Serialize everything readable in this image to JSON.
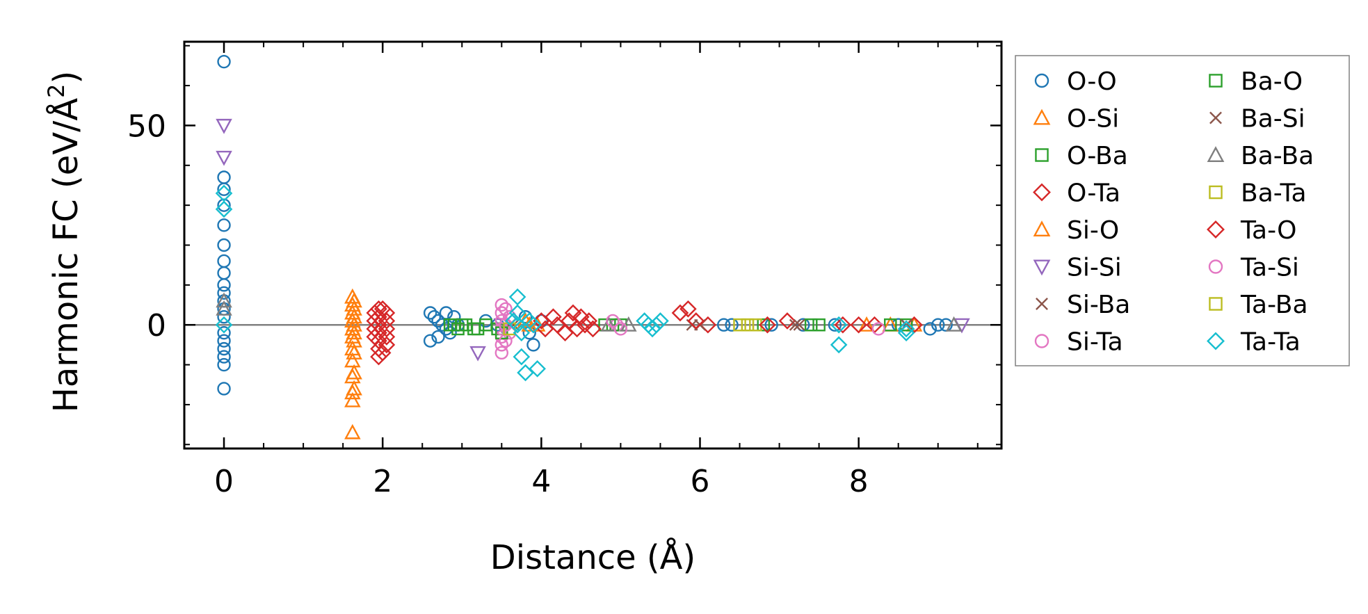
{
  "chart_data": {
    "type": "scatter",
    "xlabel": "Distance (Å)",
    "ylabel_main": "Harmonic FC (eV/Å",
    "ylabel_sup": "2",
    "ylabel_close": ")",
    "xlim": [
      -0.5,
      9.8
    ],
    "ylim": [
      -31,
      71
    ],
    "xticks": [
      0,
      2,
      4,
      6,
      8
    ],
    "xtick_labels": [
      "0",
      "2",
      "4",
      "6",
      "8"
    ],
    "yticks": [
      0,
      50
    ],
    "ytick_labels": [
      "0",
      "50"
    ],
    "grid": false,
    "legend_placement": "outside-right",
    "zero_line": true,
    "series": [
      {
        "name": "O-O",
        "marker": "circle",
        "color": "#1f77b4",
        "points": [
          [
            0,
            66
          ],
          [
            0,
            37
          ],
          [
            0,
            34
          ],
          [
            0,
            30
          ],
          [
            0,
            25
          ],
          [
            0,
            20
          ],
          [
            0,
            16
          ],
          [
            0,
            13
          ],
          [
            0,
            10
          ],
          [
            0,
            8
          ],
          [
            0,
            6
          ],
          [
            0,
            4
          ],
          [
            0,
            2
          ],
          [
            0,
            -2
          ],
          [
            0,
            -4
          ],
          [
            0,
            -6
          ],
          [
            0,
            -8
          ],
          [
            0,
            -10
          ],
          [
            0,
            -16
          ],
          [
            2.6,
            3
          ],
          [
            2.65,
            2
          ],
          [
            2.7,
            1
          ],
          [
            2.75,
            0
          ],
          [
            2.8,
            -1
          ],
          [
            2.85,
            -2
          ],
          [
            2.6,
            -4
          ],
          [
            2.7,
            -3
          ],
          [
            2.8,
            3
          ],
          [
            2.9,
            2
          ],
          [
            2.95,
            0
          ],
          [
            3.3,
            1
          ],
          [
            3.45,
            0
          ],
          [
            3.8,
            2
          ],
          [
            3.85,
            -2
          ],
          [
            3.9,
            -5
          ],
          [
            4.0,
            1
          ],
          [
            6.3,
            0
          ],
          [
            6.4,
            0
          ],
          [
            6.9,
            0
          ],
          [
            7.3,
            0
          ],
          [
            7.7,
            0
          ],
          [
            8.5,
            0
          ],
          [
            8.9,
            -1
          ],
          [
            9.0,
            0
          ],
          [
            9.1,
            0
          ]
        ]
      },
      {
        "name": "O-Si",
        "marker": "triangle-up",
        "color": "#ff7f0e",
        "points": [
          [
            1.62,
            7
          ],
          [
            1.62,
            5
          ],
          [
            1.62,
            3
          ],
          [
            1.62,
            1
          ],
          [
            1.62,
            -1
          ],
          [
            1.62,
            -3
          ],
          [
            1.62,
            -6
          ],
          [
            1.62,
            -9
          ],
          [
            1.62,
            -13
          ],
          [
            1.62,
            -17
          ],
          [
            1.62,
            -19
          ],
          [
            1.62,
            -27
          ],
          [
            3.85,
            0
          ],
          [
            8.1,
            0
          ],
          [
            8.4,
            0
          ],
          [
            8.7,
            0
          ]
        ]
      },
      {
        "name": "O-Ba",
        "marker": "square",
        "color": "#2ca02c",
        "points": [
          [
            2.85,
            0
          ],
          [
            2.95,
            -1
          ],
          [
            3.05,
            0
          ],
          [
            3.15,
            -1
          ],
          [
            3.3,
            0
          ],
          [
            3.45,
            -1
          ],
          [
            4.8,
            0
          ],
          [
            5.0,
            0
          ],
          [
            6.8,
            0
          ],
          [
            7.4,
            0
          ],
          [
            8.4,
            0
          ],
          [
            8.6,
            0
          ]
        ]
      },
      {
        "name": "O-Ta",
        "marker": "diamond",
        "color": "#d62728",
        "points": [
          [
            1.95,
            4
          ],
          [
            1.95,
            2
          ],
          [
            1.95,
            0
          ],
          [
            1.95,
            -2
          ],
          [
            1.95,
            -4
          ],
          [
            1.95,
            -6
          ],
          [
            1.95,
            -8
          ],
          [
            2.05,
            3
          ],
          [
            2.05,
            1
          ],
          [
            2.05,
            -1
          ],
          [
            2.05,
            -3
          ],
          [
            2.05,
            -5
          ],
          [
            5.85,
            4
          ],
          [
            5.75,
            3
          ],
          [
            6.1,
            0
          ],
          [
            7.1,
            1
          ],
          [
            8.0,
            0
          ],
          [
            8.7,
            0
          ]
        ]
      },
      {
        "name": "Si-O",
        "marker": "triangle-up",
        "color": "#ff7f0e",
        "points": [
          [
            1.64,
            6
          ],
          [
            1.64,
            4
          ],
          [
            1.64,
            2
          ],
          [
            1.64,
            0
          ],
          [
            1.64,
            -2
          ],
          [
            1.64,
            -4
          ],
          [
            1.64,
            -7
          ],
          [
            1.64,
            -12
          ],
          [
            1.64,
            -16
          ],
          [
            3.8,
            1
          ],
          [
            3.95,
            0
          ]
        ]
      },
      {
        "name": "Si-Si",
        "marker": "triangle-down",
        "color": "#9467bd",
        "points": [
          [
            0,
            50
          ],
          [
            0,
            42
          ],
          [
            3.2,
            -7
          ],
          [
            3.5,
            0
          ],
          [
            9.3,
            0
          ]
        ]
      },
      {
        "name": "Si-Ba",
        "marker": "x",
        "color": "#8c564b",
        "points": [
          [
            3.6,
            0
          ],
          [
            5.9,
            0
          ],
          [
            7.2,
            0
          ],
          [
            8.6,
            0
          ]
        ]
      },
      {
        "name": "Si-Ta",
        "marker": "circle",
        "color": "#e377c2",
        "points": [
          [
            3.5,
            5
          ],
          [
            3.5,
            3
          ],
          [
            3.5,
            1
          ],
          [
            3.5,
            -1
          ],
          [
            3.5,
            -3
          ],
          [
            3.5,
            -5
          ],
          [
            3.5,
            -7
          ],
          [
            3.6,
            2
          ],
          [
            3.6,
            -2
          ],
          [
            4.95,
            0
          ]
        ]
      },
      {
        "name": "Ba-O",
        "marker": "square",
        "color": "#2ca02c",
        "points": [
          [
            2.9,
            0
          ],
          [
            3.0,
            0
          ],
          [
            3.2,
            -1
          ],
          [
            3.5,
            -2
          ],
          [
            4.9,
            0
          ],
          [
            7.5,
            0
          ]
        ]
      },
      {
        "name": "Ba-Si",
        "marker": "x",
        "color": "#8c564b",
        "points": [
          [
            3.65,
            0
          ],
          [
            6.0,
            0
          ],
          [
            7.25,
            0
          ]
        ]
      },
      {
        "name": "Ba-Ba",
        "marker": "triangle-up",
        "color": "#7f7f7f",
        "points": [
          [
            0,
            6
          ],
          [
            0,
            4
          ],
          [
            4.85,
            0
          ],
          [
            5.1,
            0
          ],
          [
            9.2,
            0
          ]
        ]
      },
      {
        "name": "Ba-Ta",
        "marker": "square",
        "color": "#bcbd22",
        "points": [
          [
            6.5,
            0
          ],
          [
            6.6,
            0
          ],
          [
            6.7,
            0
          ]
        ]
      },
      {
        "name": "Ta-O",
        "marker": "diamond",
        "color": "#d62728",
        "points": [
          [
            1.9,
            3
          ],
          [
            1.9,
            1
          ],
          [
            1.9,
            -1
          ],
          [
            1.9,
            -3
          ],
          [
            2.0,
            4
          ],
          [
            2.0,
            -7
          ],
          [
            4.0,
            1
          ],
          [
            4.05,
            -1
          ],
          [
            4.15,
            2
          ],
          [
            4.2,
            0
          ],
          [
            4.3,
            -2
          ],
          [
            4.35,
            1
          ],
          [
            4.4,
            3
          ],
          [
            4.45,
            -1
          ],
          [
            4.5,
            2
          ],
          [
            4.55,
            0
          ],
          [
            4.6,
            1
          ],
          [
            4.65,
            -1
          ],
          [
            5.95,
            1
          ],
          [
            6.85,
            0
          ],
          [
            7.8,
            0
          ],
          [
            8.2,
            0
          ]
        ]
      },
      {
        "name": "Ta-Si",
        "marker": "circle",
        "color": "#e377c2",
        "points": [
          [
            3.55,
            4
          ],
          [
            3.55,
            0
          ],
          [
            3.55,
            -4
          ],
          [
            4.9,
            1
          ],
          [
            5.0,
            -1
          ],
          [
            8.25,
            -1
          ]
        ]
      },
      {
        "name": "Ta-Ba",
        "marker": "square",
        "color": "#bcbd22",
        "points": [
          [
            3.6,
            -1
          ],
          [
            6.6,
            0
          ]
        ]
      },
      {
        "name": "Ta-Ta",
        "marker": "diamond",
        "color": "#17becf",
        "points": [
          [
            0,
            33
          ],
          [
            0,
            29
          ],
          [
            0,
            0
          ],
          [
            3.7,
            7
          ],
          [
            3.7,
            3
          ],
          [
            3.7,
            0
          ],
          [
            3.75,
            -2
          ],
          [
            3.75,
            -8
          ],
          [
            3.8,
            -12
          ],
          [
            3.95,
            -11
          ],
          [
            3.65,
            1
          ],
          [
            3.85,
            1
          ],
          [
            3.9,
            0
          ],
          [
            5.3,
            1
          ],
          [
            5.35,
            0
          ],
          [
            5.4,
            -1
          ],
          [
            5.45,
            0
          ],
          [
            5.5,
            1
          ],
          [
            7.75,
            0
          ],
          [
            7.75,
            -5
          ],
          [
            8.6,
            -1
          ],
          [
            8.6,
            -2
          ]
        ]
      }
    ]
  }
}
